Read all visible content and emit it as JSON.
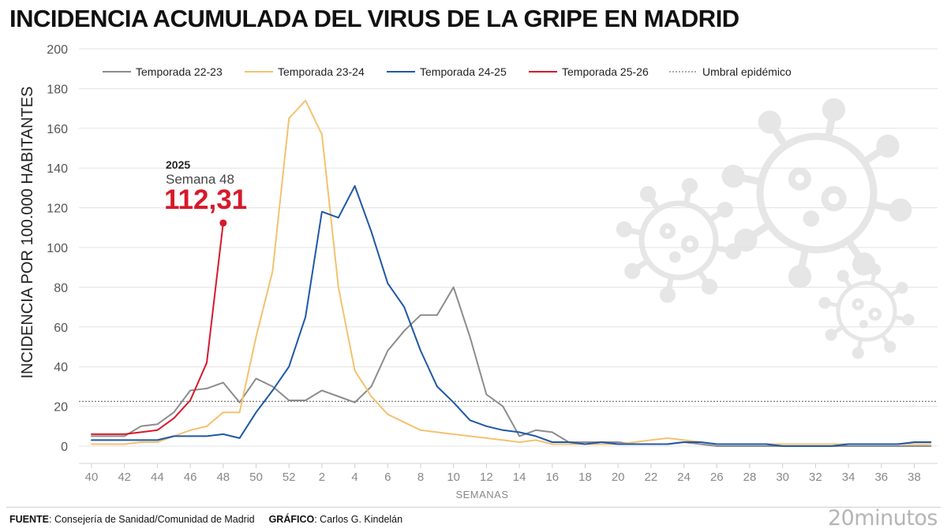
{
  "title": "INCIDENCIA ACUMULADA DEL VIRUS DE LA GRIPE EN MADRID",
  "footer": {
    "source_label": "FUENTE",
    "source_text": ": Consejería de Sanidad/Comunidad de Madrid",
    "graphic_label": "GRÁFICO",
    "graphic_text": ": Carlos G. Kindelán"
  },
  "brand": "20minutos",
  "colors": {
    "temporada_22_23": "#8c8c8c",
    "temporada_23_24": "#f4c170",
    "temporada_24_25": "#1f57a8",
    "temporada_25_26": "#d7192a",
    "threshold": "#555555",
    "grid": "#e3e3e3",
    "virus_icon": "#e6e6e6"
  },
  "chart_data": {
    "type": "line",
    "xlabel": "SEMANAS",
    "ylabel": "INCIDENCIA POR 100.000 HABITANTES",
    "ylim": [
      0,
      200
    ],
    "yticks": [
      "0",
      "20",
      "40",
      "60",
      "80",
      "100",
      "120",
      "140",
      "160",
      "180",
      "200"
    ],
    "xticks": [
      "40",
      "42",
      "44",
      "46",
      "48",
      "50",
      "52",
      "2",
      "4",
      "6",
      "8",
      "10",
      "12",
      "14",
      "16",
      "18",
      "20",
      "22",
      "24",
      "26",
      "28",
      "30",
      "32",
      "34",
      "36",
      "38"
    ],
    "weeks": [
      "40",
      "41",
      "42",
      "43",
      "44",
      "45",
      "46",
      "47",
      "48",
      "49",
      "50",
      "51",
      "52",
      "1",
      "2",
      "3",
      "4",
      "5",
      "6",
      "7",
      "8",
      "9",
      "10",
      "11",
      "12",
      "13",
      "14",
      "15",
      "16",
      "17",
      "18",
      "19",
      "20",
      "21",
      "22",
      "23",
      "24",
      "25",
      "26",
      "27",
      "28",
      "29",
      "30",
      "31",
      "32",
      "33",
      "34",
      "35",
      "36",
      "37",
      "38",
      "39"
    ],
    "grid": "horizontal",
    "legend_position": "top",
    "series": [
      {
        "name": "Temporada 22-23",
        "color_key": "temporada_22_23",
        "values": [
          5,
          5,
          5,
          10,
          11,
          17,
          28,
          29,
          32,
          22,
          34,
          30,
          23,
          23,
          28,
          25,
          22,
          30,
          48,
          58,
          66,
          66,
          80,
          55,
          26,
          20,
          5,
          8,
          7,
          2,
          2,
          2,
          2,
          1,
          1,
          1,
          2,
          1,
          0,
          0,
          0,
          0,
          0,
          0,
          0,
          0,
          0,
          0,
          0,
          0,
          0,
          0
        ]
      },
      {
        "name": "Temporada 23-24",
        "color_key": "temporada_23_24",
        "values": [
          1,
          1,
          1,
          2,
          2,
          5,
          8,
          10,
          17,
          17,
          55,
          88,
          165,
          174,
          157,
          80,
          38,
          25,
          16,
          12,
          8,
          7,
          6,
          5,
          4,
          3,
          2,
          3,
          1,
          1,
          1,
          1,
          1,
          2,
          3,
          4,
          3,
          2,
          1,
          1,
          1,
          1,
          1,
          1,
          1,
          1,
          1,
          1,
          1,
          1,
          1,
          1
        ]
      },
      {
        "name": "Temporada 24-25",
        "color_key": "temporada_24_25",
        "values": [
          3,
          3,
          3,
          3,
          3,
          5,
          5,
          5,
          6,
          4,
          17,
          28,
          40,
          65,
          118,
          115,
          131,
          108,
          82,
          70,
          48,
          30,
          22,
          13,
          10,
          8,
          7,
          5,
          2,
          2,
          1,
          2,
          1,
          1,
          1,
          1,
          2,
          2,
          1,
          1,
          1,
          1,
          0,
          0,
          0,
          0,
          1,
          1,
          1,
          1,
          2,
          2
        ]
      },
      {
        "name": "Temporada 25-26",
        "color_key": "temporada_25_26",
        "values": [
          6,
          6,
          6,
          7,
          8,
          14,
          23,
          42,
          112.31
        ]
      }
    ],
    "threshold": {
      "name": "Umbral epidémico",
      "value": 22.5
    },
    "annotation": {
      "year": "2025",
      "week": "Semana 48",
      "value": "112,31"
    }
  }
}
